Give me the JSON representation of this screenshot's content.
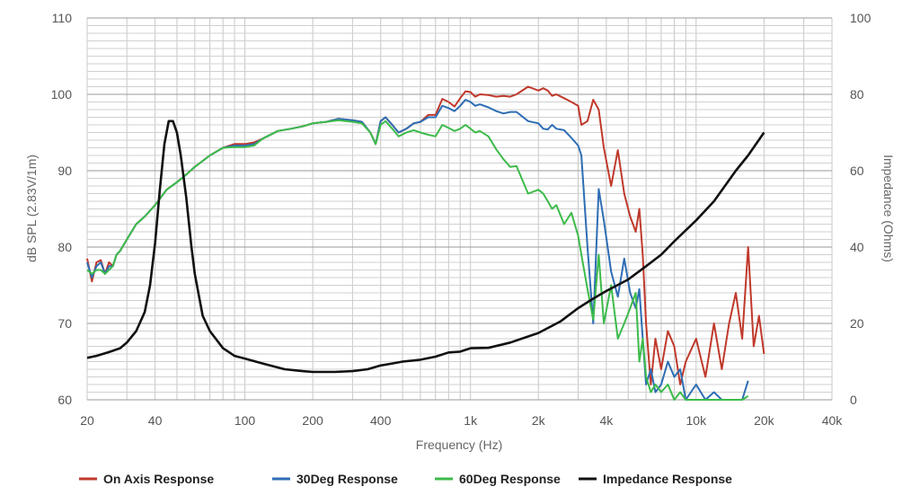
{
  "chart_data": {
    "type": "line",
    "xlabel": "Frequency (Hz)",
    "ylabel": "dB SPL (2.83V/1m)",
    "ylabel_right": "Impedance (Ohms)",
    "x_scale": "log",
    "xlim": [
      20,
      40000
    ],
    "ylim": [
      60,
      110
    ],
    "ylim_right": [
      0,
      100
    ],
    "grid": true,
    "legend_placement": "bottom",
    "x_ticks": [
      {
        "value": 20,
        "label": "20"
      },
      {
        "value": 40,
        "label": "40"
      },
      {
        "value": 100,
        "label": "100"
      },
      {
        "value": 200,
        "label": "200"
      },
      {
        "value": 400,
        "label": "400"
      },
      {
        "value": 1000,
        "label": "1k"
      },
      {
        "value": 2000,
        "label": "2k"
      },
      {
        "value": 4000,
        "label": "4k"
      },
      {
        "value": 10000,
        "label": "10k"
      },
      {
        "value": 20000,
        "label": "20k"
      },
      {
        "value": 40000,
        "label": "40k"
      }
    ],
    "y_ticks": [
      60,
      70,
      80,
      90,
      100,
      110
    ],
    "y_ticks_right": [
      0,
      20,
      40,
      60,
      80,
      100
    ],
    "series": [
      {
        "name": "On Axis Response",
        "color": "#c0392b",
        "axis": "left",
        "x": [
          20,
          21,
          22,
          23,
          24,
          25,
          26,
          27,
          28,
          30,
          33,
          36,
          40,
          45,
          50,
          55,
          60,
          70,
          80,
          90,
          100,
          110,
          120,
          140,
          160,
          180,
          200,
          230,
          260,
          300,
          330,
          360,
          380,
          400,
          420,
          450,
          480,
          520,
          560,
          600,
          650,
          700,
          750,
          800,
          850,
          900,
          950,
          1000,
          1050,
          1100,
          1200,
          1300,
          1400,
          1500,
          1600,
          1800,
          2000,
          2100,
          2200,
          2300,
          2400,
          2600,
          2800,
          3000,
          3100,
          3300,
          3500,
          3700,
          3900,
          4200,
          4500,
          4800,
          5100,
          5400,
          5600,
          5800,
          6000,
          6300,
          6600,
          7000,
          7500,
          8000,
          8500,
          9000,
          10000,
          11000,
          12000,
          13000,
          14000,
          15000,
          16000,
          17000,
          18000,
          19000,
          20000
        ],
        "y": [
          78.5,
          75.5,
          78,
          78.3,
          76.5,
          78,
          77.5,
          79,
          79.5,
          81,
          83,
          84,
          85.5,
          87.5,
          88.5,
          89.5,
          90.5,
          92,
          93,
          93.5,
          93.5,
          93.7,
          94.2,
          95.2,
          95.5,
          95.8,
          96.2,
          96.4,
          96.8,
          96.6,
          96.4,
          95,
          93.5,
          96.5,
          97,
          96,
          95,
          95.5,
          96.2,
          96.4,
          97.3,
          97.3,
          99.4,
          99,
          98.4,
          99.5,
          100.4,
          100.3,
          99.7,
          100,
          99.9,
          99.7,
          99.8,
          99.7,
          100,
          101,
          100.5,
          100.8,
          100.5,
          99.8,
          100,
          99.5,
          99,
          98.5,
          96,
          96.5,
          99.3,
          98,
          93,
          88,
          92.7,
          87,
          84,
          82,
          85,
          79,
          70,
          62,
          68,
          64,
          69,
          67,
          62,
          65,
          68,
          63,
          70,
          64,
          70,
          74,
          68,
          80,
          67,
          71,
          66
        ]
      },
      {
        "name": "30Deg Response",
        "color": "#2e6db4",
        "axis": "left",
        "x": [
          20,
          21,
          22,
          23,
          24,
          25,
          26,
          27,
          28,
          30,
          33,
          36,
          40,
          45,
          50,
          55,
          60,
          70,
          80,
          90,
          100,
          110,
          120,
          140,
          160,
          180,
          200,
          230,
          260,
          300,
          330,
          360,
          380,
          400,
          420,
          450,
          480,
          520,
          560,
          600,
          650,
          700,
          750,
          800,
          850,
          900,
          950,
          1000,
          1050,
          1100,
          1200,
          1300,
          1400,
          1500,
          1600,
          1800,
          2000,
          2100,
          2200,
          2300,
          2400,
          2600,
          2800,
          3000,
          3100,
          3300,
          3500,
          3700,
          3900,
          4200,
          4500,
          4800,
          5100,
          5400,
          5600,
          5800,
          6000,
          6300,
          6600,
          7000,
          7500,
          8000,
          8500,
          9000,
          10000,
          11000,
          12000,
          13000,
          14000,
          15000,
          16000,
          17000
        ],
        "y": [
          78,
          76,
          77.5,
          78,
          76.5,
          77.5,
          77.5,
          79,
          79.5,
          81,
          83,
          84,
          85.5,
          87.5,
          88.5,
          89.5,
          90.5,
          92,
          93,
          93.3,
          93.3,
          93.5,
          94.2,
          95.2,
          95.5,
          95.8,
          96.2,
          96.4,
          96.8,
          96.6,
          96.4,
          95,
          93.5,
          96.5,
          97,
          96,
          95,
          95.5,
          96.2,
          96.4,
          97,
          97,
          98.5,
          98.2,
          97.8,
          98.5,
          99.3,
          99,
          98.5,
          98.7,
          98.3,
          97.8,
          97.5,
          97.7,
          97.7,
          96.5,
          96.2,
          95.5,
          95.4,
          96,
          95.5,
          95.3,
          94.3,
          93.3,
          92,
          80,
          70,
          87.6,
          83.5,
          76.8,
          73.5,
          78.5,
          74,
          72,
          74.5,
          68,
          62,
          64,
          61,
          62,
          65,
          63,
          64,
          60,
          62,
          60,
          61,
          60,
          60,
          60,
          59,
          62.5
        ]
      },
      {
        "name": "60Deg Response",
        "color": "#3dbb4a",
        "axis": "left",
        "x": [
          20,
          21,
          22,
          23,
          24,
          25,
          26,
          27,
          28,
          30,
          33,
          36,
          40,
          45,
          50,
          55,
          60,
          70,
          80,
          90,
          100,
          110,
          120,
          140,
          160,
          180,
          200,
          230,
          260,
          300,
          330,
          360,
          380,
          400,
          420,
          450,
          480,
          520,
          560,
          600,
          650,
          700,
          750,
          800,
          850,
          900,
          950,
          1000,
          1050,
          1100,
          1200,
          1300,
          1400,
          1500,
          1600,
          1800,
          2000,
          2100,
          2200,
          2300,
          2400,
          2600,
          2800,
          3000,
          3100,
          3300,
          3500,
          3700,
          3900,
          4200,
          4500,
          4800,
          5100,
          5400,
          5600,
          5800,
          6000,
          6300,
          6600,
          7000,
          7500,
          8000,
          8500,
          9000,
          10000,
          11000,
          12000,
          13000,
          14000,
          15000,
          16000,
          17000
        ],
        "y": [
          77,
          76.5,
          77,
          77,
          76.5,
          77,
          77.5,
          79,
          79.5,
          81,
          83,
          84,
          85.5,
          87.5,
          88.5,
          89.5,
          90.5,
          92,
          93,
          93.1,
          93.1,
          93.3,
          94.2,
          95.2,
          95.5,
          95.8,
          96.2,
          96.4,
          96.6,
          96.4,
          96.2,
          95,
          93.5,
          96,
          96.5,
          95.5,
          94.5,
          95,
          95.3,
          95,
          94.7,
          94.5,
          96,
          95.6,
          95.2,
          95.5,
          96,
          95.5,
          95,
          95.2,
          94.5,
          92.8,
          91.5,
          90.5,
          90.6,
          87,
          87.5,
          87,
          86,
          85,
          85.5,
          83,
          84.5,
          81.5,
          79,
          74.5,
          70.5,
          79,
          70,
          75,
          68,
          70,
          72,
          74,
          65,
          68,
          63,
          61,
          62,
          61,
          62,
          60,
          61,
          60,
          60,
          59,
          60,
          60,
          59,
          60,
          60,
          60.5
        ]
      },
      {
        "name": "Impedance Response",
        "color": "#111111",
        "axis": "right",
        "x": [
          20,
          22,
          25,
          28,
          30,
          33,
          36,
          38,
          40,
          42,
          44,
          46,
          48,
          50,
          52,
          55,
          58,
          60,
          65,
          70,
          80,
          90,
          100,
          120,
          150,
          180,
          200,
          250,
          300,
          350,
          400,
          450,
          500,
          600,
          700,
          800,
          900,
          1000,
          1200,
          1500,
          2000,
          2500,
          3000,
          3500,
          4000,
          5000,
          6000,
          7000,
          8000,
          10000,
          12000,
          15000,
          17000,
          20000
        ],
        "y": [
          11,
          11.5,
          12.5,
          13.5,
          15,
          18,
          23,
          30,
          41,
          55,
          67,
          73,
          73,
          70,
          64,
          53,
          40,
          33,
          22,
          18,
          13.5,
          11.5,
          10.8,
          9.5,
          8,
          7.5,
          7.3,
          7.3,
          7.5,
          8,
          9,
          9.5,
          10,
          10.5,
          11.3,
          12.4,
          12.6,
          13.5,
          13.6,
          15,
          17.5,
          20.5,
          24,
          26.5,
          28.5,
          31.5,
          35,
          38,
          41.5,
          47,
          52,
          60,
          64,
          70
        ]
      }
    ]
  }
}
